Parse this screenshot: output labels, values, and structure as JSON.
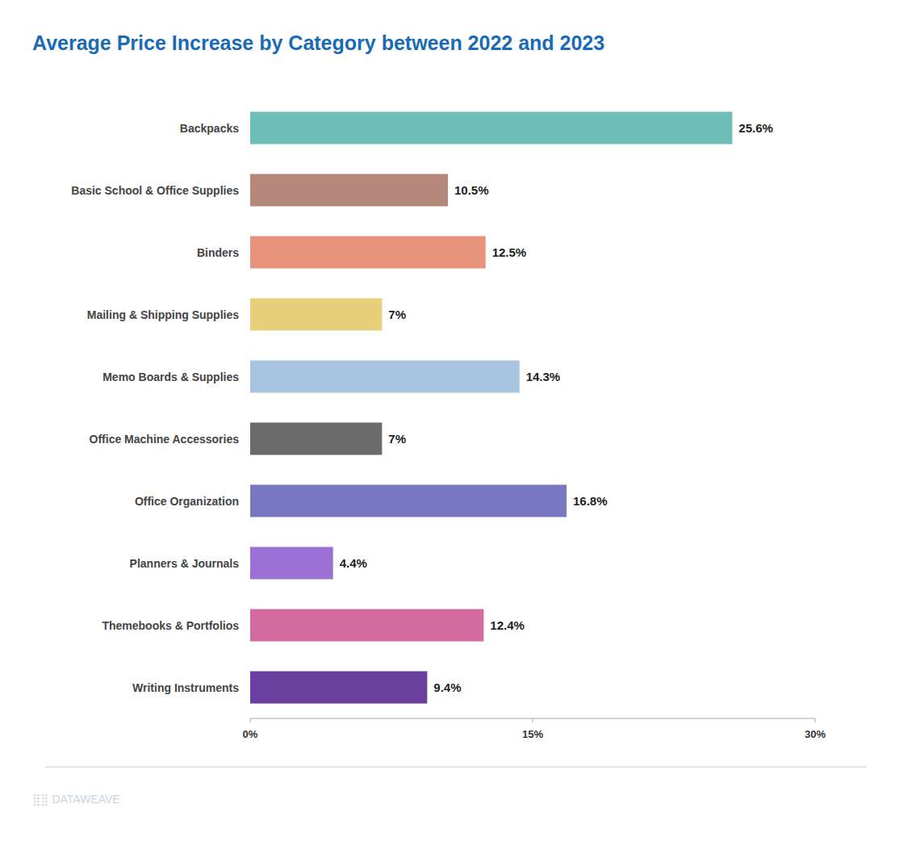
{
  "chart_data": {
    "type": "bar",
    "orientation": "horizontal",
    "title": "Average Price Increase by Category between 2022 and 2023",
    "categories": [
      "Backpacks",
      "Basic School & Office Supplies",
      "Binders",
      "Mailing & Shipping Supplies",
      "Memo Boards & Supplies",
      "Office Machine Accessories",
      "Office Organization",
      "Planners & Journals",
      "Themebooks & Portfolios",
      "Writing Instruments"
    ],
    "values": [
      25.6,
      10.5,
      12.5,
      7.0,
      14.3,
      7.0,
      16.8,
      4.4,
      12.4,
      9.4
    ],
    "value_labels": [
      "25.6%",
      "10.5%",
      "12.5%",
      "7%",
      "14.3%",
      "7%",
      "16.8%",
      "4.4%",
      "12.4%",
      "9.4%"
    ],
    "colors": [
      "#6dbfb8",
      "#b5877a",
      "#e8947c",
      "#e8d07a",
      "#a8c4e0",
      "#6b6b6b",
      "#7878c0",
      "#9b6fd4",
      "#d46ba0",
      "#6b3fa0"
    ],
    "data_labels": true,
    "xlim": [
      0,
      30
    ],
    "xticks": [
      {
        "value": 0,
        "label": "0%"
      },
      {
        "value": 15,
        "label": "15%"
      },
      {
        "value": 30,
        "label": "30%"
      }
    ],
    "grid": false,
    "annotations": [
      "⣿⣿ DATAWEAVE"
    ]
  }
}
